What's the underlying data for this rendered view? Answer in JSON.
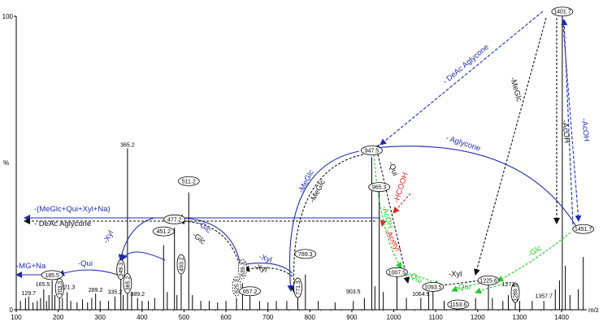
{
  "chart_data": {
    "type": "bar",
    "title": "",
    "xlabel": "m/z",
    "ylabel": "%",
    "xlim": [
      100,
      1460
    ],
    "ylim": [
      0,
      100
    ],
    "x_ticks": [
      100,
      200,
      300,
      400,
      500,
      600,
      700,
      800,
      900,
      1000,
      1100,
      1200,
      1300,
      1400
    ],
    "y_ticks": [
      0,
      100
    ],
    "peaks": [
      {
        "x": 110,
        "y": 3
      },
      {
        "x": 122,
        "y": 4
      },
      {
        "x": 129.7,
        "y": 4.5
      },
      {
        "x": 140,
        "y": 2.5
      },
      {
        "x": 150,
        "y": 3
      },
      {
        "x": 158,
        "y": 4
      },
      {
        "x": 165.5,
        "y": 7
      },
      {
        "x": 172,
        "y": 3
      },
      {
        "x": 178,
        "y": 5
      },
      {
        "x": 185.5,
        "y": 10
      },
      {
        "x": 192,
        "y": 5
      },
      {
        "x": 203,
        "y": 7
      },
      {
        "x": 210,
        "y": 4
      },
      {
        "x": 221.3,
        "y": 6
      },
      {
        "x": 230,
        "y": 3
      },
      {
        "x": 245,
        "y": 2.5
      },
      {
        "x": 258,
        "y": 3.5
      },
      {
        "x": 270,
        "y": 2.5
      },
      {
        "x": 280,
        "y": 4
      },
      {
        "x": 289.2,
        "y": 5.5
      },
      {
        "x": 300,
        "y": 3
      },
      {
        "x": 320,
        "y": 3
      },
      {
        "x": 335.2,
        "y": 4.5
      },
      {
        "x": 349.3,
        "y": 12
      },
      {
        "x": 355,
        "y": 5
      },
      {
        "x": 365.2,
        "y": 55
      },
      {
        "x": 375,
        "y": 6
      },
      {
        "x": 389.2,
        "y": 4
      },
      {
        "x": 400,
        "y": 3
      },
      {
        "x": 415,
        "y": 3
      },
      {
        "x": 430,
        "y": 4
      },
      {
        "x": 451.2,
        "y": 22
      },
      {
        "x": 460,
        "y": 6
      },
      {
        "x": 477.2,
        "y": 28
      },
      {
        "x": 483,
        "y": 5
      },
      {
        "x": 493.2,
        "y": 12
      },
      {
        "x": 511.2,
        "y": 40
      },
      {
        "x": 520,
        "y": 5
      },
      {
        "x": 540,
        "y": 3
      },
      {
        "x": 560,
        "y": 3
      },
      {
        "x": 580,
        "y": 2.5
      },
      {
        "x": 600,
        "y": 3
      },
      {
        "x": 625,
        "y": 4
      },
      {
        "x": 639.3,
        "y": 9
      },
      {
        "x": 657.2,
        "y": 5
      },
      {
        "x": 680,
        "y": 3
      },
      {
        "x": 700,
        "y": 2.5
      },
      {
        "x": 720,
        "y": 3
      },
      {
        "x": 745,
        "y": 3
      },
      {
        "x": 771.3,
        "y": 10
      },
      {
        "x": 789.3,
        "y": 12
      },
      {
        "x": 820,
        "y": 3
      },
      {
        "x": 860,
        "y": 2.5
      },
      {
        "x": 903.5,
        "y": 3
      },
      {
        "x": 930,
        "y": 4
      },
      {
        "x": 947.5,
        "y": 52
      },
      {
        "x": 955,
        "y": 8
      },
      {
        "x": 965.3,
        "y": 42
      },
      {
        "x": 975,
        "y": 6
      },
      {
        "x": 1007.5,
        "y": 12
      },
      {
        "x": 1030,
        "y": 4
      },
      {
        "x": 1064.5,
        "y": 4
      },
      {
        "x": 1083,
        "y": 6
      },
      {
        "x": 1093.5,
        "y": 8
      },
      {
        "x": 1120,
        "y": 3
      },
      {
        "x": 1153.6,
        "y": 3
      },
      {
        "x": 1195,
        "y": 4
      },
      {
        "x": 1225.6,
        "y": 10
      },
      {
        "x": 1235,
        "y": 4
      },
      {
        "x": 1260,
        "y": 3
      },
      {
        "x": 1273,
        "y": 5
      },
      {
        "x": 1289.5,
        "y": 9
      },
      {
        "x": 1300,
        "y": 3
      },
      {
        "x": 1330,
        "y": 3
      },
      {
        "x": 1357.7,
        "y": 3
      },
      {
        "x": 1385,
        "y": 7
      },
      {
        "x": 1395,
        "y": 10
      },
      {
        "x": 1401.7,
        "y": 100
      },
      {
        "x": 1409,
        "y": 15
      },
      {
        "x": 1420,
        "y": 5
      },
      {
        "x": 1440,
        "y": 7
      },
      {
        "x": 1451.7,
        "y": 18
      }
    ],
    "plain_labels": [
      {
        "text": "129.7",
        "x": 129.7,
        "y": 4.5
      },
      {
        "text": "165.5",
        "x": 163,
        "y": 7.5
      },
      {
        "text": "221.3",
        "x": 223,
        "y": 6.5
      },
      {
        "text": "289.2",
        "x": 289.2,
        "y": 5.5
      },
      {
        "text": "335.2",
        "x": 335.2,
        "y": 4.8
      },
      {
        "text": "365.2",
        "x": 365.2,
        "y": 55
      },
      {
        "text": "389.2",
        "x": 389.2,
        "y": 4.2
      },
      {
        "text": "903.5",
        "x": 903.5,
        "y": 5
      },
      {
        "text": "1064.5",
        "x": 1064.5,
        "y": 4.2
      },
      {
        "text": "1273",
        "x": 1273,
        "y": 7.5
      },
      {
        "text": "1357.7",
        "x": 1357.7,
        "y": 3.5
      }
    ],
    "ellipse_labels": [
      {
        "text": "185.5",
        "x": 185.5,
        "y": 11.8,
        "vertical": false,
        "dashed": false
      },
      {
        "text": "203.3",
        "x": 203.3,
        "y": 7.3,
        "vertical": true,
        "dashed": false
      },
      {
        "text": "349.3",
        "x": 349.3,
        "y": 13.7,
        "vertical": true,
        "dashed": false
      },
      {
        "text": "365.2",
        "x": 365.2,
        "y": 9,
        "vertical": true,
        "dashed": false
      },
      {
        "text": "451.2",
        "x": 451.2,
        "y": 26.7,
        "vertical": false,
        "dashed": false
      },
      {
        "text": "477.2",
        "x": 477.2,
        "y": 30.8,
        "vertical": false,
        "dashed": false
      },
      {
        "text": "493.2",
        "x": 493.2,
        "y": 15.5,
        "vertical": true,
        "dashed": false
      },
      {
        "text": "511.2",
        "x": 511.2,
        "y": 43.8,
        "vertical": false,
        "dashed": false
      },
      {
        "text": "639.3",
        "x": 639.3,
        "y": 13.8,
        "vertical": true,
        "dashed": true
      },
      {
        "text": "625.3",
        "x": 625.3,
        "y": 8,
        "vertical": true,
        "dashed": true
      },
      {
        "text": "657.2",
        "x": 657.2,
        "y": 6.3,
        "vertical": false,
        "dashed": false
      },
      {
        "text": "771.3",
        "x": 771.3,
        "y": 7.5,
        "vertical": true,
        "dashed": false
      },
      {
        "text": "789.3",
        "x": 789.3,
        "y": 19,
        "vertical": false,
        "dashed": false
      },
      {
        "text": "947.5",
        "x": 947.5,
        "y": 54.3,
        "vertical": false,
        "dashed": false
      },
      {
        "text": "965.3",
        "x": 965.3,
        "y": 41.8,
        "vertical": false,
        "dashed": false
      },
      {
        "text": "1007.5",
        "x": 1007.5,
        "y": 12.8,
        "vertical": false,
        "dashed": false
      },
      {
        "text": "1093.5",
        "x": 1093.5,
        "y": 7.8,
        "vertical": false,
        "dashed": false
      },
      {
        "text": "1153.6",
        "x": 1153.6,
        "y": 1.8,
        "vertical": false,
        "dashed": false
      },
      {
        "text": "1225.6",
        "x": 1225.6,
        "y": 10,
        "vertical": false,
        "dashed": false
      },
      {
        "text": "1289.5",
        "x": 1289.5,
        "y": 5.8,
        "vertical": true,
        "dashed": false
      },
      {
        "text": "1401.7",
        "x": 1401.7,
        "y": 101.6,
        "vertical": false,
        "dashed": false
      },
      {
        "text": "1451.7",
        "x": 1451.7,
        "y": 27.5,
        "vertical": false,
        "dashed": false
      }
    ],
    "annotations": [
      {
        "text": "-(MeGlc+Qui+Xyl+Na)",
        "color": "#1f2db0"
      },
      {
        "text": "- DeAc Aglycone",
        "color": "#111111"
      },
      {
        "text": "-MG+Na",
        "color": "#1f2db0"
      },
      {
        "text": "-Qui",
        "color": "#1f2db0"
      },
      {
        "text": "-Xyl",
        "color": "#1f2db0"
      },
      {
        "text": "-HCOOH",
        "color": "#e02020"
      },
      {
        "text": "-Acetyl",
        "color": "#e02020"
      },
      {
        "text": "-Glc",
        "color": "#1f2db0"
      },
      {
        "text": "-Glc",
        "color": "#111111"
      },
      {
        "text": "-Xyl",
        "color": "#1f2db0"
      },
      {
        "text": "-Xyl",
        "color": "#111111"
      },
      {
        "text": "-MeGlc",
        "color": "#1f2db0"
      },
      {
        "text": "-MeGlc",
        "color": "#111111"
      },
      {
        "text": "- Aglycone",
        "color": "#1f2db0"
      },
      {
        "text": "- DeAc Aglycone",
        "color": "#1f2db0"
      },
      {
        "text": "-MeGlc",
        "color": "#111111"
      },
      {
        "text": "-AcOH",
        "color": "#111111"
      },
      {
        "text": "-AcOH",
        "color": "#1f2db0"
      },
      {
        "text": "-Qui",
        "color": "#111111"
      },
      {
        "text": "-AcOH",
        "color": "#22cc22"
      },
      {
        "text": "-Qui",
        "color": "#22cc22"
      },
      {
        "text": "-Qui",
        "color": "#22cc22"
      },
      {
        "text": "-Xyl",
        "color": "#111111"
      },
      {
        "text": "-Glc",
        "color": "#22cc22"
      }
    ],
    "colors": {
      "blue": "#1f2db0",
      "black": "#111111",
      "red": "#e02020",
      "green": "#22cc22"
    },
    "grid": false,
    "legend": "none"
  }
}
